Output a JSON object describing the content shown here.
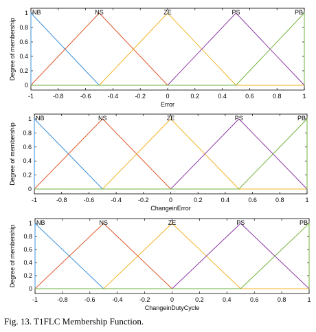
{
  "caption": "Fig. 13.  T1FLC Membership Function.",
  "chart_data": [
    {
      "type": "line",
      "ylabel": "Degree of membership",
      "xlabel": "Error",
      "xlim": [
        -1,
        1
      ],
      "ylim": [
        0,
        1
      ],
      "xticks": [
        -1,
        -0.8,
        -0.6,
        -0.4,
        -0.2,
        0,
        0.2,
        0.4,
        0.6,
        0.8,
        1
      ],
      "yticks": [
        0,
        0.2,
        0.4,
        0.6,
        0.8,
        1
      ],
      "xtick_labels": [
        "-1",
        "-0.8",
        "-0.6",
        "-0.4",
        "-0.2",
        "0",
        "0.2",
        "0.4",
        "0.6",
        "0.8",
        "1"
      ],
      "ytick_labels": [
        "0",
        "0.2",
        "0.4",
        "0.6",
        "0.8",
        "1"
      ],
      "grid": false,
      "series": [
        {
          "name": "NB",
          "color": "#3a8fd9",
          "x": [
            -1,
            -1,
            -0.5,
            1
          ],
          "y": [
            0,
            1,
            0,
            0
          ]
        },
        {
          "name": "NS",
          "color": "#e0582a",
          "x": [
            -1,
            -0.5,
            0,
            1
          ],
          "y": [
            0,
            1,
            0,
            0
          ]
        },
        {
          "name": "ZE",
          "color": "#f2b428",
          "x": [
            -1,
            -0.5,
            0,
            0.5,
            1
          ],
          "y": [
            0,
            0,
            1,
            0,
            0
          ]
        },
        {
          "name": "PS",
          "color": "#8e3aa6",
          "x": [
            -1,
            0,
            0.5,
            1
          ],
          "y": [
            0,
            0,
            1,
            0
          ]
        },
        {
          "name": "PB",
          "color": "#72b33c",
          "x": [
            -1,
            0.5,
            1,
            1
          ],
          "y": [
            0,
            0,
            1,
            0
          ]
        }
      ]
    },
    {
      "type": "line",
      "ylabel": "Degree of membership",
      "xlabel": "ChangeinError",
      "xlim": [
        -1,
        1
      ],
      "ylim": [
        0,
        1
      ],
      "xticks": [
        -1,
        -0.8,
        -0.6,
        -0.4,
        -0.2,
        0,
        0.2,
        0.4,
        0.6,
        0.8,
        1
      ],
      "yticks": [
        0,
        0.2,
        0.4,
        0.6,
        0.8,
        1
      ],
      "xtick_labels": [
        "-1",
        "-0.8",
        "-0.6",
        "-0.4",
        "-0.2",
        "0",
        "0.2",
        "0.4",
        "0.6",
        "0.8",
        "1"
      ],
      "ytick_labels": [
        "0",
        "0.2",
        "0.4",
        "0.6",
        "0.8",
        "1"
      ],
      "grid": false,
      "series": [
        {
          "name": "NB",
          "color": "#3a8fd9",
          "x": [
            -1,
            -1,
            -0.5,
            1
          ],
          "y": [
            0,
            1,
            0,
            0
          ]
        },
        {
          "name": "NS",
          "color": "#e0582a",
          "x": [
            -1,
            -0.5,
            0,
            1
          ],
          "y": [
            0,
            1,
            0,
            0
          ]
        },
        {
          "name": "ZE",
          "color": "#f2b428",
          "x": [
            -1,
            -0.5,
            0,
            0.5,
            1
          ],
          "y": [
            0,
            0,
            1,
            0,
            0
          ]
        },
        {
          "name": "PS",
          "color": "#8e3aa6",
          "x": [
            -1,
            0,
            0.5,
            1
          ],
          "y": [
            0,
            0,
            1,
            0
          ]
        },
        {
          "name": "PB",
          "color": "#72b33c",
          "x": [
            -1,
            0.5,
            1,
            1
          ],
          "y": [
            0,
            0,
            1,
            0
          ]
        }
      ]
    },
    {
      "type": "line",
      "ylabel": "Degree of membership",
      "xlabel": "ChangeinDutyCycle",
      "xlim": [
        -1,
        1
      ],
      "ylim": [
        0,
        1
      ],
      "xticks": [
        -1,
        -0.8,
        -0.6,
        -0.4,
        -0.2,
        0,
        0.2,
        0.4,
        0.6,
        0.8,
        1
      ],
      "yticks": [
        0,
        0.2,
        0.4,
        0.6,
        0.8,
        1
      ],
      "xtick_labels": [
        "-1",
        "-0.8",
        "-0.6",
        "-0.4",
        "-0.2",
        "0",
        "0.2",
        "0.4",
        "0.6",
        "0.8",
        "1"
      ],
      "ytick_labels": [
        "0",
        "0.2",
        "0.4",
        "0.6",
        "0.8",
        "1"
      ],
      "grid": false,
      "series": [
        {
          "name": "NB",
          "color": "#3a8fd9",
          "x": [
            -1,
            -1,
            -0.5,
            1
          ],
          "y": [
            0,
            1,
            0,
            0
          ]
        },
        {
          "name": "NS",
          "color": "#e0582a",
          "x": [
            -1,
            -0.5,
            0,
            1
          ],
          "y": [
            0,
            1,
            0,
            0
          ]
        },
        {
          "name": "ZE",
          "color": "#f2b428",
          "x": [
            -1,
            -0.5,
            0,
            0.5,
            1
          ],
          "y": [
            0,
            0,
            1,
            0,
            0
          ]
        },
        {
          "name": "PS",
          "color": "#8e3aa6",
          "x": [
            -1,
            0,
            0.5,
            1
          ],
          "y": [
            0,
            0,
            1,
            0
          ]
        },
        {
          "name": "PB",
          "color": "#72b33c",
          "x": [
            -1,
            0.5,
            1,
            1
          ],
          "y": [
            0,
            0,
            1,
            0
          ]
        }
      ]
    }
  ]
}
